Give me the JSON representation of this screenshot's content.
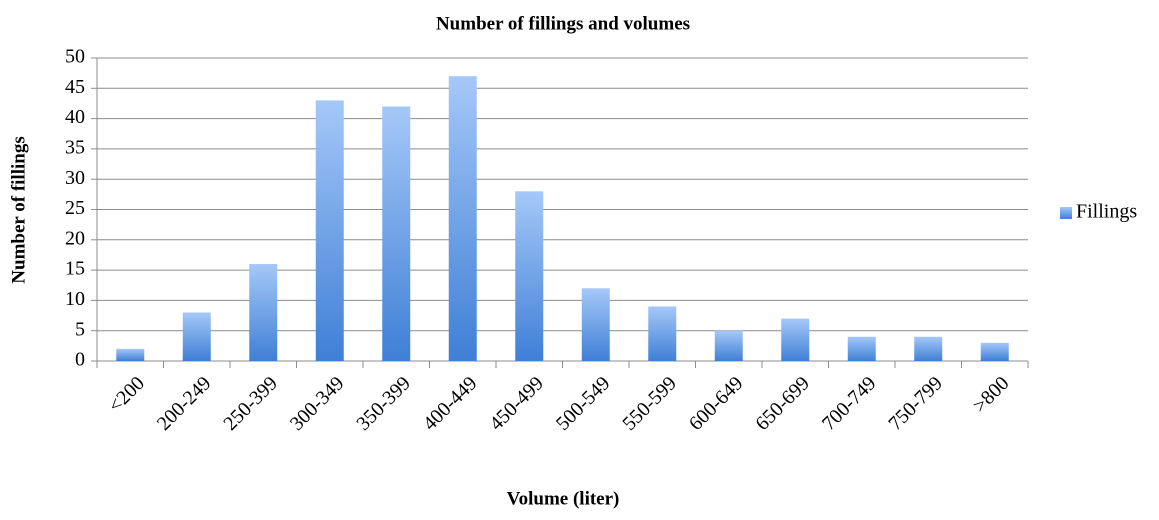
{
  "chart_data": {
    "type": "bar",
    "title": "Number of fillings and volumes",
    "x_label": "Volume (liter)",
    "y_label": "Number of fillings",
    "categories": [
      "<200",
      "200-249",
      "250-399",
      "300-349",
      "350-399",
      "400-449",
      "450-499",
      "500-549",
      "550-599",
      "600-649",
      "650-699",
      "700-749",
      "750-799",
      ">800"
    ],
    "series": [
      {
        "name": "Fillings",
        "color": "#3f7fd6",
        "values": [
          2,
          8,
          16,
          43,
          42,
          47,
          28,
          12,
          9,
          5,
          7,
          4,
          4,
          3
        ]
      }
    ],
    "ylim": [
      0,
      50
    ],
    "yticks": [
      0,
      5,
      10,
      15,
      20,
      25,
      30,
      35,
      40,
      45,
      50
    ],
    "grid": true,
    "legend": "right"
  }
}
